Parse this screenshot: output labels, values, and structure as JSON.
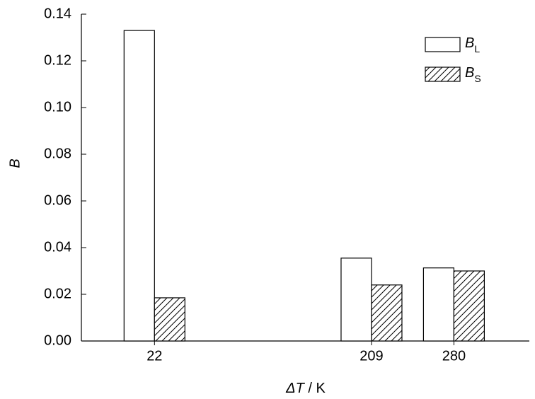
{
  "chart_data": {
    "type": "bar",
    "x_label": "ΔT / K",
    "y_label": "B",
    "x": [
      22,
      209,
      280
    ],
    "series": [
      {
        "name": "BL",
        "color": "#ffffff",
        "values": [
          0.133,
          0.0355,
          0.0313
        ]
      },
      {
        "name": "BS",
        "color": "hatch",
        "values": [
          0.0185,
          0.024,
          0.03
        ]
      }
    ],
    "xlim": [
      -41,
      345
    ],
    "xticks": [
      22,
      209,
      280
    ],
    "ylim": [
      0,
      0.14
    ],
    "yticks": [
      {
        "value": 0,
        "label": "0.00"
      },
      0.02,
      0.04,
      0.06,
      0.08,
      {
        "value": 0.1,
        "label": "0.10"
      },
      0.12,
      0.14
    ],
    "legend": "upper-right"
  }
}
